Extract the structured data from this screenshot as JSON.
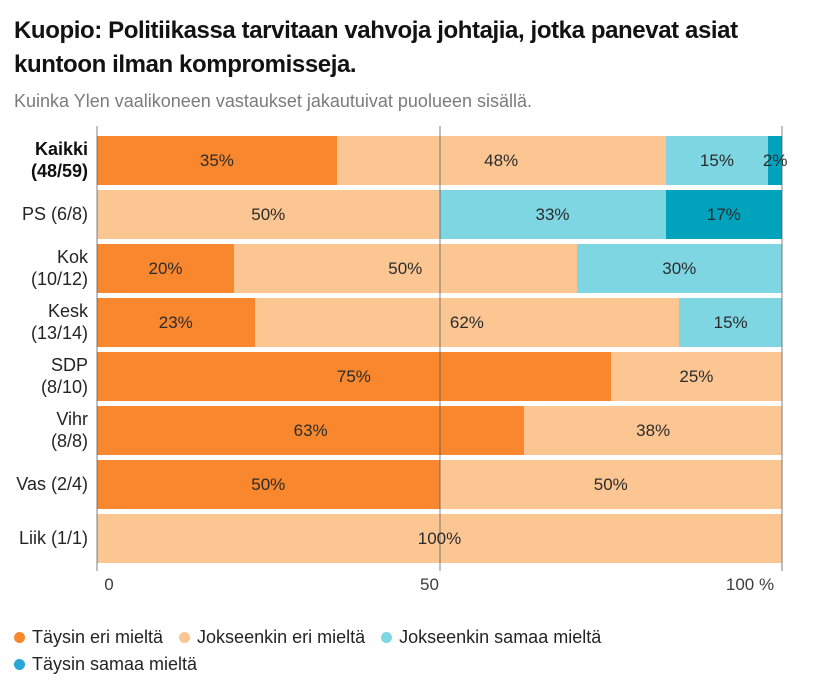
{
  "header": {
    "title": "Kuopio: Politiikassa tarvitaan vahvoja johtajia, jotka panevat asiat kuntoon ilman kompromisseja.",
    "subtitle": "Kuinka Ylen vaalikoneen vastaukset jakautuivat puolueen sisällä."
  },
  "chart_data": {
    "type": "bar",
    "orientation": "horizontal",
    "stacked": true,
    "title": "Kuopio: Politiikassa tarvitaan vahvoja johtajia, jotka panevat asiat kuntoon ilman kompromisseja.",
    "subtitle": "Kuinka Ylen vaalikoneen vastaukset jakautuivat puolueen sisällä.",
    "xlabel": "",
    "ylabel": "",
    "xlim": [
      0,
      100
    ],
    "grid": true,
    "legend_position": "bottom",
    "value_suffix": "%",
    "x_axis": {
      "ticks": [
        {
          "pos": 0,
          "label": "0"
        },
        {
          "pos": 50,
          "label": "50"
        },
        {
          "pos": 100,
          "label": "100 %"
        }
      ]
    },
    "categories": [
      {
        "label": "Kaikki (48/59)",
        "label_lines": [
          "Kaikki",
          "(48/59)"
        ],
        "bold": true
      },
      {
        "label": "PS (6/8)",
        "label_lines": [
          "PS (6/8)"
        ],
        "bold": false
      },
      {
        "label": "Kok (10/12)",
        "label_lines": [
          "Kok",
          "(10/12)"
        ],
        "bold": false
      },
      {
        "label": "Kesk (13/14)",
        "label_lines": [
          "Kesk",
          "(13/14)"
        ],
        "bold": false
      },
      {
        "label": "SDP (8/10)",
        "label_lines": [
          "SDP",
          "(8/10)"
        ],
        "bold": false
      },
      {
        "label": "Vihr (8/8)",
        "label_lines": [
          "Vihr",
          "(8/8)"
        ],
        "bold": false
      },
      {
        "label": "Vas (2/4)",
        "label_lines": [
          "Vas (2/4)"
        ],
        "bold": false
      },
      {
        "label": "Liik (1/1)",
        "label_lines": [
          "Liik (1/1)"
        ],
        "bold": false
      }
    ],
    "series": [
      {
        "name": "Täysin eri mieltä",
        "color": "#f8872e",
        "values": [
          35,
          0,
          20,
          23,
          75,
          63,
          50,
          0
        ]
      },
      {
        "name": "Jokseenkin eri mieltä",
        "color": "#fcc693",
        "values": [
          48,
          50,
          50,
          62,
          25,
          38,
          50,
          100
        ]
      },
      {
        "name": "Jokseenkin samaa mieltä",
        "color": "#7ed6e3",
        "values": [
          15,
          33,
          30,
          15,
          0,
          0,
          0,
          0
        ]
      },
      {
        "name": "Täysin samaa mieltä",
        "color": "#00a2bc",
        "legend_dot_color": "#2aa5d8",
        "values": [
          2,
          17,
          0,
          0,
          0,
          0,
          0,
          0
        ]
      }
    ]
  }
}
